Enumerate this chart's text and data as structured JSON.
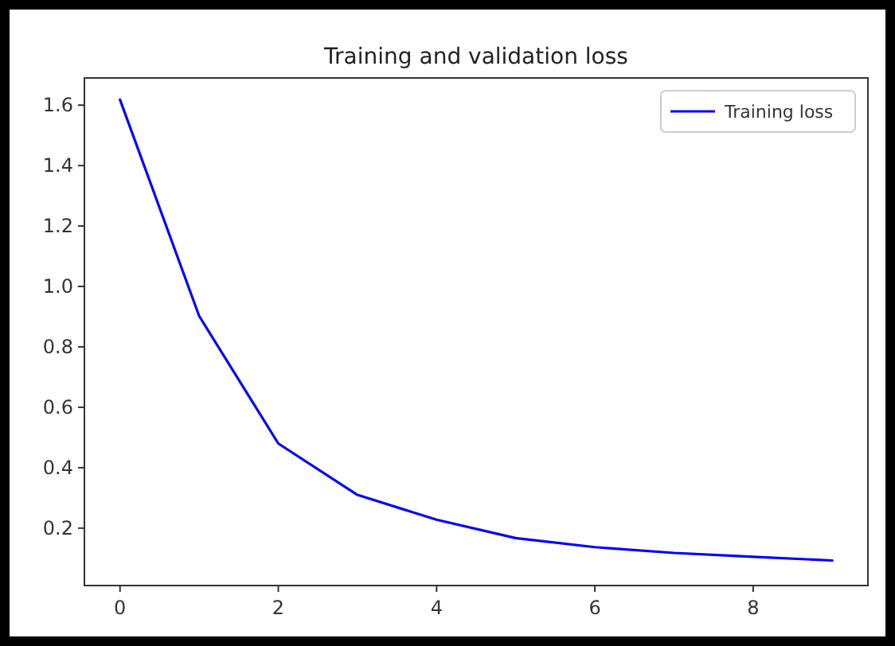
{
  "chart_data": {
    "type": "line",
    "title": "Training and validation loss",
    "x": [
      0,
      1,
      2,
      3,
      4,
      5,
      6,
      7,
      8,
      9
    ],
    "series": [
      {
        "name": "Training loss",
        "color": "#0000ff",
        "values": [
          1.618,
          0.902,
          0.48,
          0.31,
          0.228,
          0.167,
          0.137,
          0.118,
          0.105,
          0.093
        ]
      }
    ],
    "xlim": [
      -0.45,
      9.45
    ],
    "xticks": [
      0,
      2,
      4,
      6,
      8
    ],
    "ylim": [
      0.01,
      1.69
    ],
    "yticks": [
      0.2,
      0.4,
      0.6,
      0.8,
      {
        "value": 1,
        "label": "1.0"
      },
      1.2,
      1.4,
      1.6
    ],
    "legend": "top right",
    "grid": false
  }
}
